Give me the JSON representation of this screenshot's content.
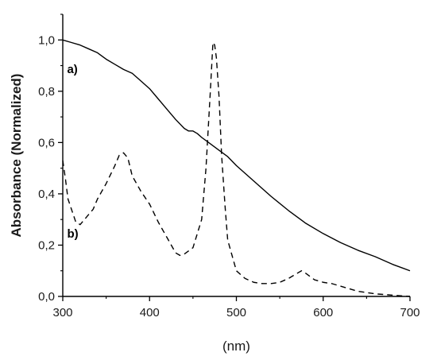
{
  "chart_data": {
    "type": "line",
    "title": "",
    "xlabel": "(nm)",
    "ylabel": "Absorbance (Normalized)",
    "xlim": [
      300,
      700
    ],
    "ylim": [
      0.0,
      1.1
    ],
    "x_ticks": [
      "300",
      "400",
      "500",
      "600",
      "700"
    ],
    "y_ticks": [
      "0,0",
      "0,2",
      "0,4",
      "0,6",
      "0,8",
      "1,0"
    ],
    "grid": false,
    "legend": "none",
    "series": [
      {
        "label": "a)",
        "style": "solid",
        "color": "#000000",
        "x": [
          300,
          310,
          320,
          330,
          340,
          350,
          360,
          370,
          380,
          390,
          400,
          410,
          420,
          430,
          440,
          445,
          450,
          455,
          460,
          470,
          480,
          490,
          500,
          520,
          540,
          560,
          580,
          600,
          620,
          640,
          660,
          680,
          700
        ],
        "y": [
          1.0,
          0.99,
          0.98,
          0.965,
          0.95,
          0.925,
          0.905,
          0.885,
          0.87,
          0.84,
          0.81,
          0.77,
          0.73,
          0.69,
          0.655,
          0.645,
          0.645,
          0.635,
          0.62,
          0.595,
          0.57,
          0.545,
          0.51,
          0.45,
          0.39,
          0.335,
          0.285,
          0.245,
          0.21,
          0.18,
          0.155,
          0.125,
          0.1
        ]
      },
      {
        "label": "b)",
        "style": "dashed",
        "color": "#000000",
        "x": [
          300,
          303,
          306,
          310,
          315,
          320,
          325,
          330,
          335,
          340,
          350,
          360,
          365,
          370,
          375,
          380,
          390,
          400,
          410,
          420,
          430,
          435,
          440,
          450,
          460,
          465,
          470,
          473,
          475,
          477,
          480,
          483,
          487,
          490,
          500,
          510,
          520,
          530,
          540,
          550,
          560,
          570,
          575,
          580,
          590,
          600,
          610,
          620,
          640,
          660,
          680,
          700
        ],
        "y": [
          0.53,
          0.46,
          0.38,
          0.34,
          0.29,
          0.28,
          0.3,
          0.32,
          0.34,
          0.38,
          0.44,
          0.51,
          0.55,
          0.56,
          0.54,
          0.47,
          0.41,
          0.36,
          0.29,
          0.23,
          0.17,
          0.16,
          0.165,
          0.19,
          0.3,
          0.5,
          0.8,
          0.99,
          0.98,
          0.93,
          0.78,
          0.55,
          0.35,
          0.22,
          0.1,
          0.07,
          0.055,
          0.05,
          0.05,
          0.055,
          0.07,
          0.09,
          0.1,
          0.09,
          0.065,
          0.055,
          0.05,
          0.04,
          0.02,
          0.01,
          0.005,
          0.0
        ]
      }
    ],
    "annotations": [
      {
        "text": "a)",
        "x": 305,
        "y": 0.87
      },
      {
        "text": "b)",
        "x": 305,
        "y": 0.23
      }
    ]
  }
}
